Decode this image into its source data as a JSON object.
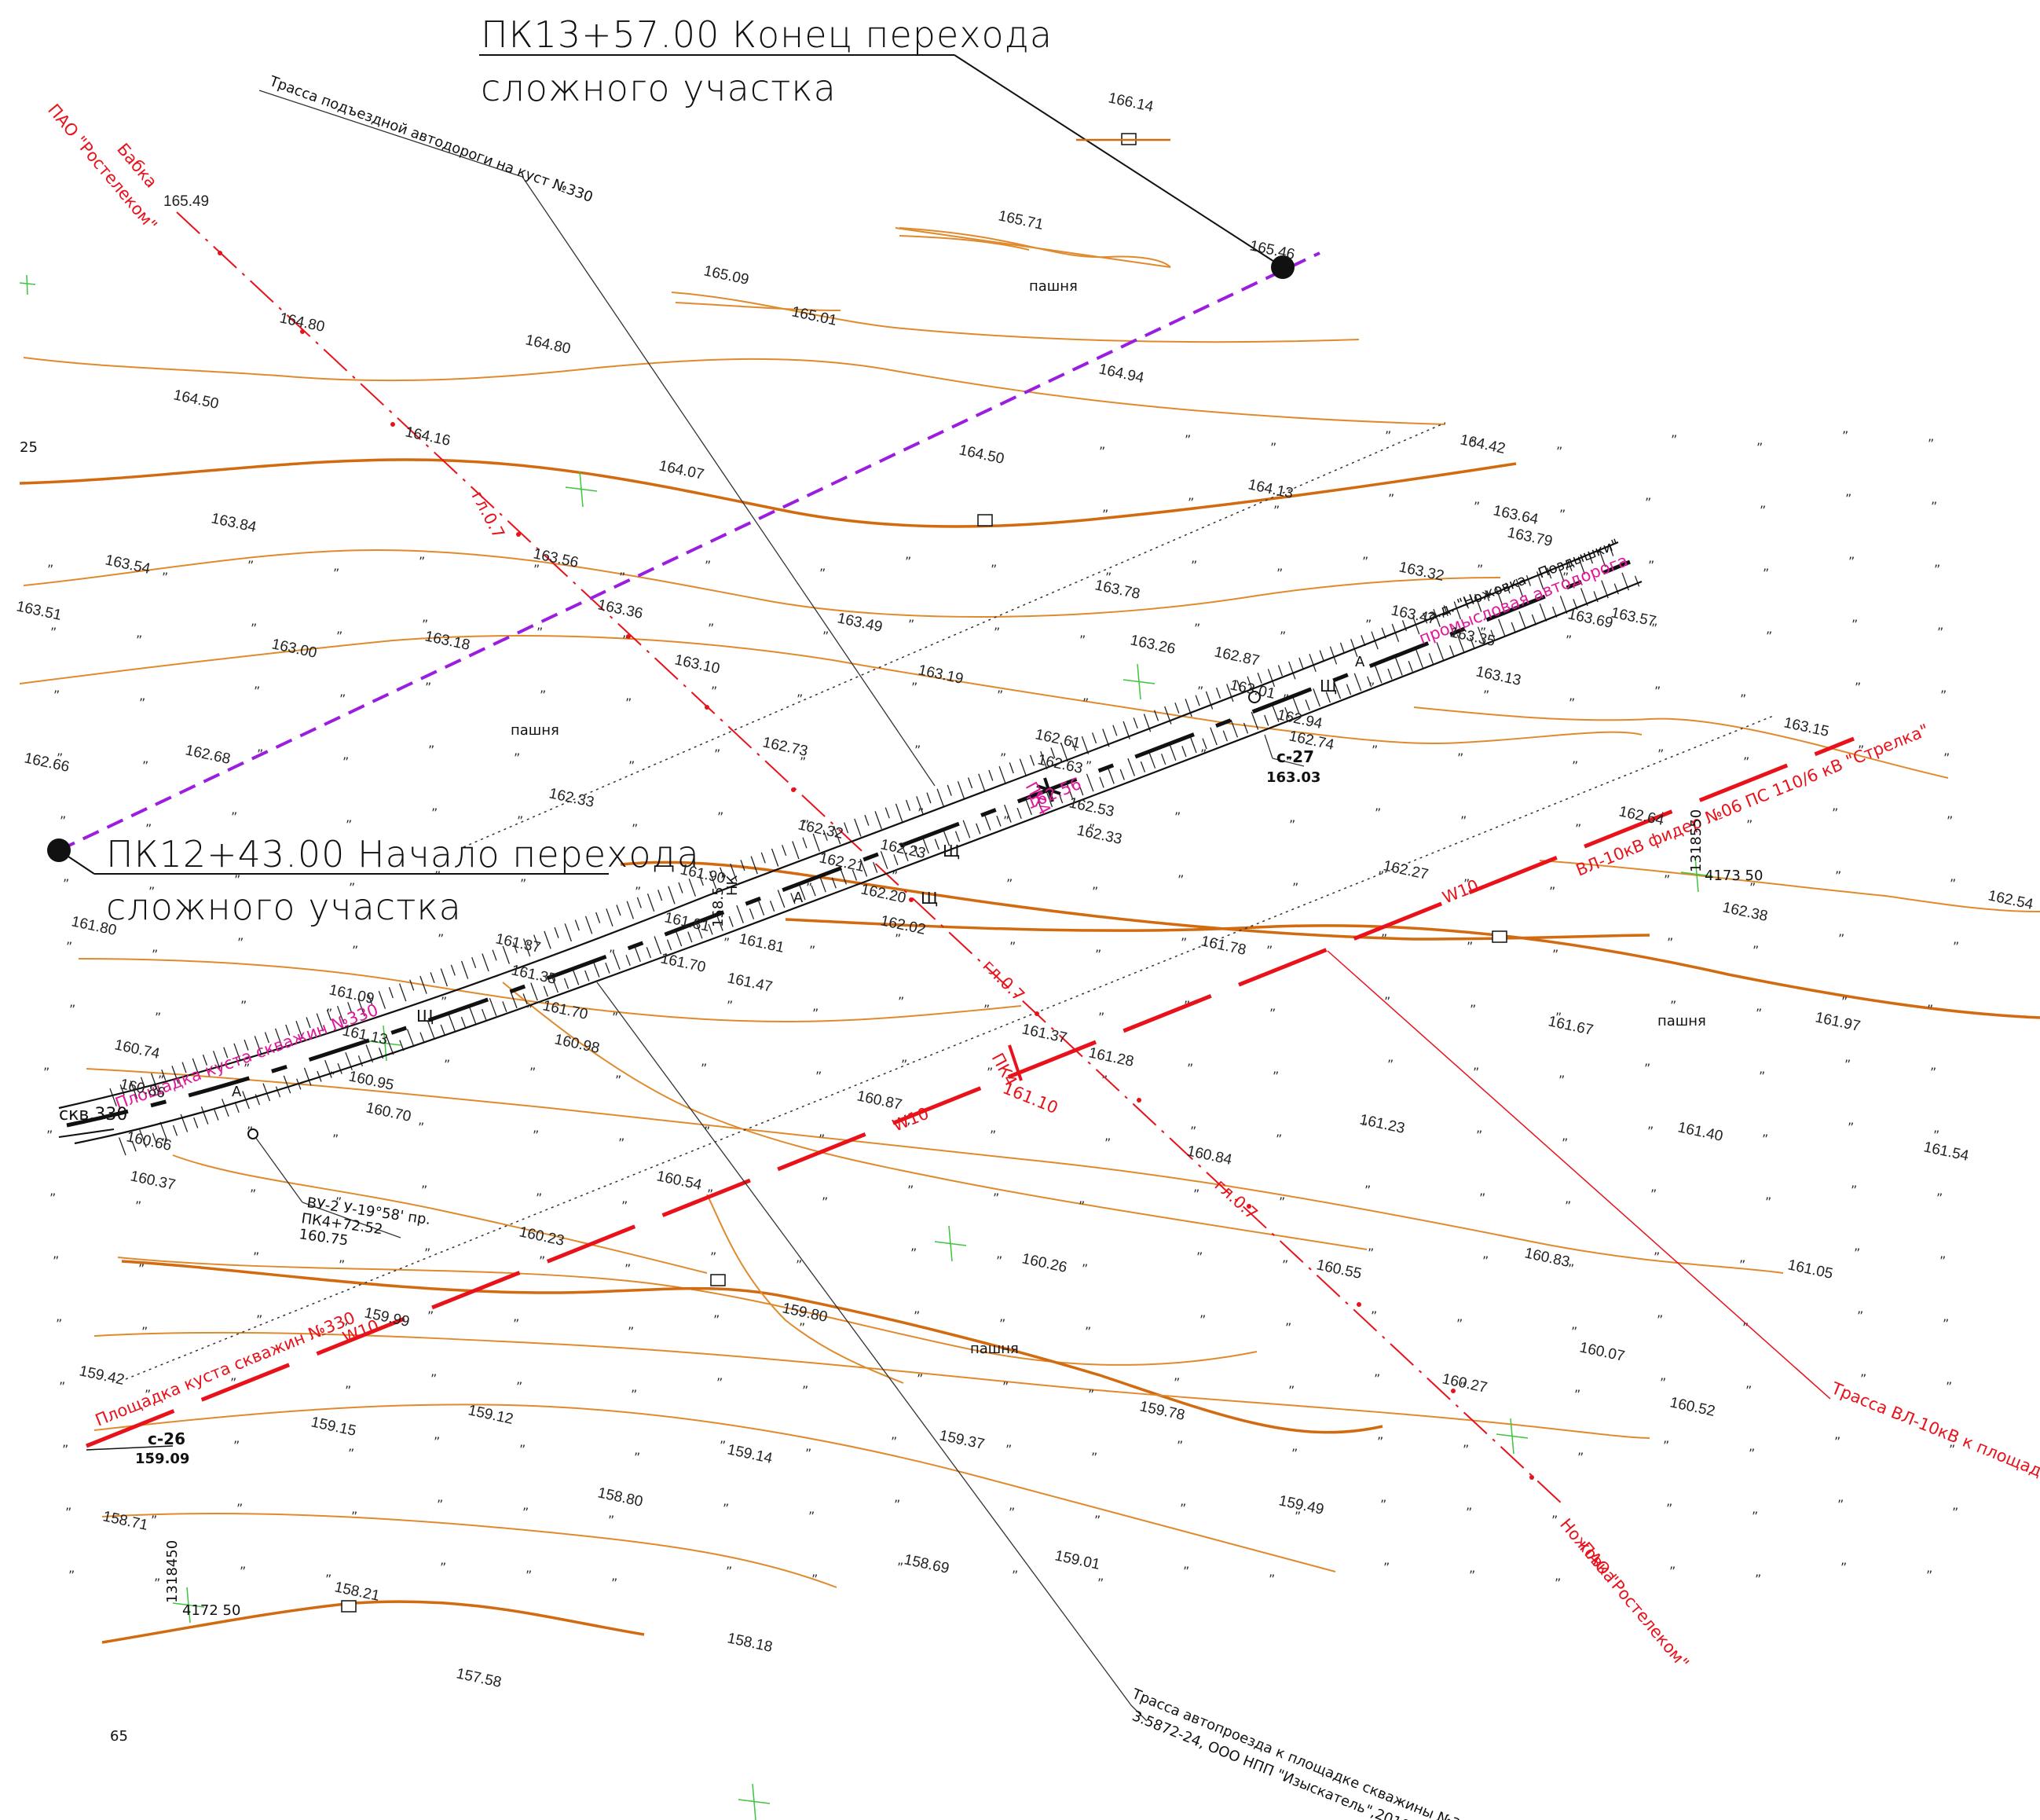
{
  "annotations": {
    "end_title_line1": "ПК13+57.00 Конец перехода",
    "end_title_line2": "сложного участка",
    "start_title_line1": "ПК12+43.00 Начало перехода",
    "start_title_line2": "сложного участка"
  },
  "labels": {
    "access_road_top": "Трасса подъездной автодороги на куст №330",
    "cable_top_1": "ПАО \"Ростелеком\"",
    "cable_top_2": "Бабка",
    "cable_bottom_1": "Ножовка",
    "cable_bottom_2": "ПАО \"Ростелеком\"",
    "road_name_1": "а.д. \"Ножовка - Поздышки\"",
    "road_name_2": "промысловая автодорога",
    "pad_label_upper": "Площадка куста скважин №330",
    "pad_label_lower": "Площадка куста скважин №330",
    "vl_feeder": "ВЛ-10кВ фидер №06 ПС 110/6 кВ \"Стрелка\"",
    "vl_route": "Трасса ВЛ-10кВ к площадке куста №330",
    "well": "скв.330",
    "c27": "с-27",
    "c27_elev": "163.03",
    "c26": "с-26",
    "c26_elev": "159.09",
    "vu": "ВУ-2 У-19°58' пр.",
    "vu_pk": "ПК4+72.52",
    "vu_elev": "160.75",
    "pk4_road": "ПК4",
    "pk4_road_elev": "162.56",
    "pk4_vl": "ПК4",
    "pk4_vl_elev": "161.10",
    "depth_1": "гл.0.7",
    "depth_2": "гл.0.7",
    "depth_3": "гл.0.7",
    "bottom_route_1": "Трасса автопроезда к площадке скважины №330",
    "bottom_route_2": "3.5872-24, ООО НПП \"Изыскатель\",2019г.",
    "arable_1": "пашня",
    "arable_2": "пашня",
    "arable_3": "пашня",
    "arable_4": "пашня",
    "w10_1": "W10",
    "w10_2": "W10",
    "w10_3": "W10",
    "coord_1a": "1318550",
    "coord_1b": "4173 50",
    "coord_2a": "1318450",
    "coord_2b": "4172 50",
    "edge_25": "25",
    "edge_65": "65",
    "shch_1": "Щ",
    "shch_2": "Щ",
    "shch_3": "Щ",
    "shch_4": "Щ",
    "road_a_1": "А",
    "road_a_2": "А",
    "road_a_3": "А",
    "hk": "НК",
    "hk_elev": "158.5"
  },
  "elevations": [
    "166.14",
    "165.71",
    "165.49",
    "165.46",
    "165.09",
    "165.01",
    "164.80",
    "164.80",
    "164.94",
    "164.50",
    "164.16",
    "164.50",
    "164.42",
    "164.07",
    "164.13",
    "163.84",
    "163.64",
    "163.79",
    "163.54",
    "163.56",
    "163.51",
    "163.36",
    "163.32",
    "163.78",
    "163.47",
    "163.49",
    "163.69",
    "163.18",
    "163.00",
    "163.10",
    "163.26",
    "163.19",
    "162.87",
    "163.35",
    "163.13",
    "163.57",
    "163.01",
    "162.66",
    "162.68",
    "162.73",
    "162.61",
    "162.94",
    "162.74",
    "163.15",
    "162.63",
    "162.33",
    "162.32",
    "162.21",
    "162.53",
    "162.33",
    "162.23",
    "162.64",
    "161.90",
    "162.20",
    "162.27",
    "162.38",
    "162.54",
    "161.80",
    "161.81",
    "162.02",
    "161.37",
    "161.70",
    "161.81",
    "161.78",
    "161.09",
    "161.35",
    "161.47",
    "161.13",
    "161.37",
    "161.28",
    "161.67",
    "161.97",
    "160.74",
    "161.70",
    "160.98",
    "160.86",
    "160.95",
    "160.87",
    "161.23",
    "161.40",
    "161.54",
    "160.70",
    "160.66",
    "160.84",
    "160.37",
    "160.54",
    "160.23",
    "160.26",
    "160.55",
    "160.83",
    "161.05",
    "159.99",
    "159.80",
    "159.42",
    "160.27",
    "160.52",
    "159.78",
    "159.15",
    "159.12",
    "159.37",
    "159.14",
    "160.07",
    "159.49",
    "158.71",
    "158.80",
    "159.01",
    "158.69",
    "158.21",
    "158.18",
    "157.58"
  ]
}
